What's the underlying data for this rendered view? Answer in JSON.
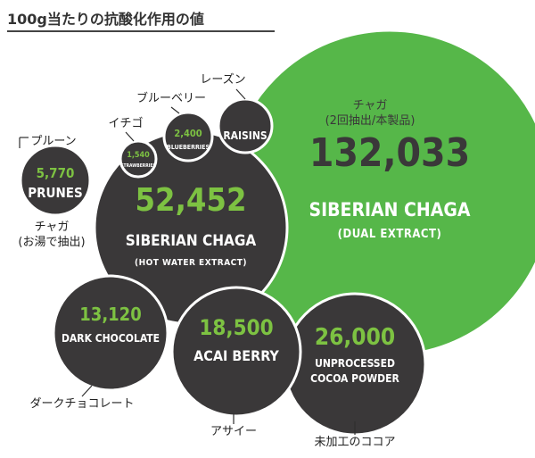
{
  "chart_data": {
    "type": "bubble",
    "title": "100g当たりの抗酸化作用の値",
    "colors": {
      "dark": "#3a3839",
      "highlight": "#56b749",
      "value_green": "#7dc242",
      "text_light": "#ffffff",
      "leader": "#2f2f2f",
      "label_text": "#222222"
    },
    "bubbles": [
      {
        "value": 132033,
        "value_label": "132,033",
        "name": "SIBERIAN CHAGA",
        "sub": "(DUAL EXTRACT)",
        "jp_label": "チャガ\n(2回抽出/本製品)",
        "highlight": true
      },
      {
        "value": 52452,
        "value_label": "52,452",
        "name": "SIBERIAN CHAGA",
        "sub": "(HOT WATER EXTRACT)",
        "jp_label": "チャガ\n(お湯で抽出)"
      },
      {
        "value": 26000,
        "value_label": "26,000",
        "name": "UNPROCESSED\nCOCOA POWDER",
        "sub": "",
        "jp_label": "未加工のココア"
      },
      {
        "value": 18500,
        "value_label": "18,500",
        "name": "ACAI BERRY",
        "sub": "",
        "jp_label": "アサイー"
      },
      {
        "value": 13120,
        "value_label": "13,120",
        "name": "DARK CHOCOLATE",
        "sub": "",
        "jp_label": "ダークチョコレート"
      },
      {
        "value": 5770,
        "value_label": "5,770",
        "name": "PRUNES",
        "sub": "",
        "jp_label": "プルーン"
      },
      {
        "value": 2400,
        "value_label": "2,400",
        "name": "BLUEBERRIES",
        "sub": "",
        "jp_label": "ブルーベリー"
      },
      {
        "value": 1540,
        "value_label": "1,540",
        "name": "STRAWBERRIES",
        "sub": "",
        "jp_label": "イチゴ"
      },
      {
        "value": null,
        "value_label": "",
        "name": "RAISINS",
        "sub": "",
        "jp_label": "レーズン"
      }
    ]
  }
}
